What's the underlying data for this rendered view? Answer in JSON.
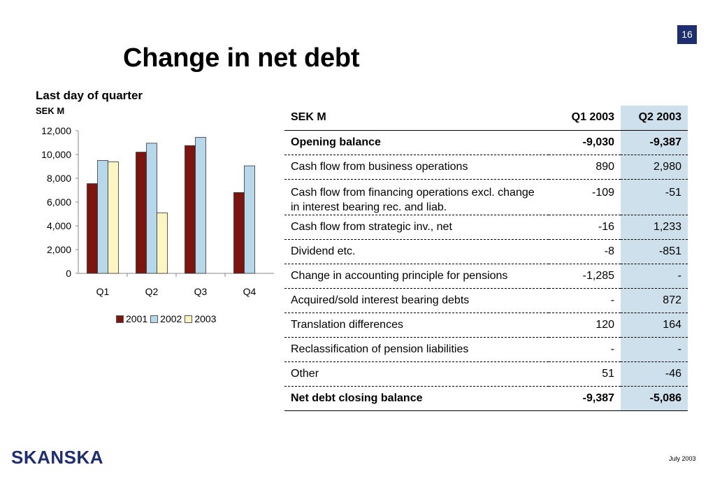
{
  "page_number": "16",
  "title": "Change in net debt",
  "subtitle": "Last day of quarter",
  "unit_label": "SEK M",
  "colors": {
    "navy": "#1f2e6e",
    "series_2001": "#7b1510",
    "series_2002": "#b7d7ea",
    "series_2003": "#fdf6c2",
    "highlight_column": "#cde0ec"
  },
  "chart_data": {
    "type": "bar",
    "title": "Last day of quarter",
    "ylabel": "SEK M",
    "categories": [
      "Q1",
      "Q2",
      "Q3",
      "Q4"
    ],
    "series": [
      {
        "name": "2001",
        "values": [
          7550,
          10200,
          10750,
          6800
        ]
      },
      {
        "name": "2002",
        "values": [
          9500,
          10950,
          11450,
          9050
        ]
      },
      {
        "name": "2003",
        "values": [
          9387,
          5086,
          null,
          null
        ]
      }
    ],
    "ylim": [
      0,
      12000
    ],
    "yticks": [
      "0",
      "2,000",
      "4,000",
      "6,000",
      "8,000",
      "10,000",
      "12,000"
    ],
    "ytick_values": [
      0,
      2000,
      4000,
      6000,
      8000,
      10000,
      12000
    ],
    "grid": false,
    "legend_position": "bottom"
  },
  "table": {
    "headers": [
      "SEK M",
      "Q1 2003",
      "Q2 2003"
    ],
    "rows": [
      {
        "label": "Opening balance",
        "q1": "-9,030",
        "q2": "-9,387"
      },
      {
        "label": "Cash flow from business operations",
        "q1": "890",
        "q2": "2,980"
      },
      {
        "label": "Cash flow from financing operations excl. change in interest bearing rec. and liab.",
        "q1": "-109",
        "q2": "-51"
      },
      {
        "label": "Cash flow from strategic inv., net",
        "q1": "-16",
        "q2": "1,233"
      },
      {
        "label": "Dividend etc.",
        "q1": "-8",
        "q2": "-851"
      },
      {
        "label": "Change in accounting principle for pensions",
        "q1": "-1,285",
        "q2": "-"
      },
      {
        "label": "Acquired/sold interest bearing debts",
        "q1": "-",
        "q2": "872"
      },
      {
        "label": "Translation differences",
        "q1": "120",
        "q2": "164"
      },
      {
        "label": "Reclassification of pension liabilities",
        "q1": "-",
        "q2": "-"
      },
      {
        "label": "Other",
        "q1": "51",
        "q2": "-46"
      },
      {
        "label": "Net debt closing balance",
        "q1": "-9,387",
        "q2": "-5,086"
      }
    ]
  },
  "footer": {
    "logo_text": "SKANSKA",
    "date": "July 2003"
  }
}
